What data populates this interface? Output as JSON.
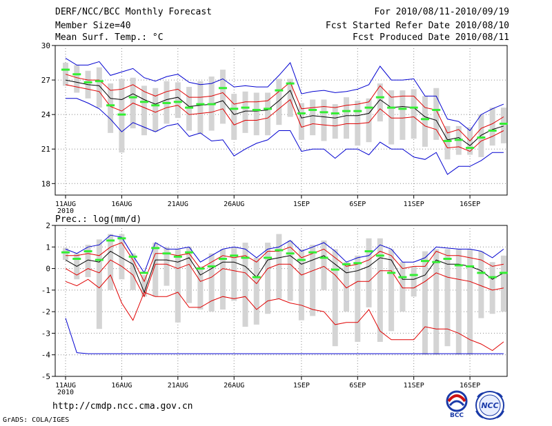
{
  "header": {
    "title": "DERF/NCC/BCC Monthly Forecast",
    "member_size": "Member Size=40",
    "variable": "Mean Surf. Temp.: °C",
    "period": "For 2010/08/11-2010/09/19",
    "fcst_started": "Fcst Started Refer Date 2010/08/10",
    "fcst_produced": "Fcst Produced Date 2010/08/11"
  },
  "footer": {
    "url": "http://cmdp.ncc.cma.gov.cn",
    "grads": "GrADS: COLA/IGES",
    "logo_left": "BCC",
    "logo_right": "NCC"
  },
  "colors": {
    "max": "#0000d0",
    "min": "#0000d0",
    "spread": "#e00000",
    "mean": "#000000",
    "box": "#d4d4d4",
    "obs": "#33ee33"
  },
  "chart_data": [
    {
      "type": "line",
      "title": "Mean Surf. Temp.: °C",
      "x_ticks": [
        "11AUG\n2010",
        "16AUG",
        "21AUG",
        "26AUG",
        "1SEP",
        "6SEP",
        "11SEP",
        "16SEP"
      ],
      "x_tick_days": [
        1,
        6,
        11,
        16,
        22,
        27,
        32,
        37
      ],
      "n_days": 40,
      "ylim": [
        17,
        30
      ],
      "y_ticks": [
        18,
        21,
        24,
        27,
        30
      ],
      "series": {
        "max": [
          28.9,
          28.3,
          28.3,
          28.6,
          27.4,
          27.7,
          28.0,
          27.2,
          26.9,
          27.3,
          27.5,
          26.8,
          26.6,
          26.7,
          27.1,
          26.4,
          26.5,
          26.4,
          26.4,
          27.4,
          28.5,
          25.8,
          26.0,
          26.1,
          25.9,
          26.0,
          26.2,
          26.6,
          28.2,
          27.0,
          27.0,
          27.1,
          25.6,
          25.6,
          23.6,
          23.4,
          22.6,
          24.0,
          24.5,
          24.9
        ],
        "upper": [
          27.5,
          27.2,
          27.0,
          27.0,
          26.1,
          26.2,
          26.6,
          26.0,
          25.6,
          26.0,
          26.2,
          25.5,
          25.5,
          25.6,
          25.9,
          24.9,
          25.1,
          25.1,
          25.2,
          26.0,
          26.8,
          24.5,
          24.6,
          24.7,
          24.6,
          24.8,
          24.9,
          25.1,
          26.5,
          25.5,
          25.6,
          25.6,
          24.6,
          24.4,
          22.4,
          22.7,
          21.7,
          22.8,
          23.2,
          23.8
        ],
        "mean": [
          27.0,
          26.8,
          26.6,
          26.5,
          25.4,
          25.3,
          25.8,
          25.3,
          24.9,
          25.3,
          25.5,
          24.7,
          24.8,
          24.9,
          25.2,
          24.0,
          24.3,
          24.3,
          24.4,
          25.2,
          26.1,
          23.7,
          23.9,
          23.8,
          23.7,
          23.9,
          23.9,
          24.1,
          25.3,
          24.6,
          24.7,
          24.6,
          23.8,
          23.5,
          21.8,
          22.0,
          21.3,
          22.2,
          22.7,
          23.0
        ],
        "lower": [
          26.6,
          26.4,
          26.2,
          26.0,
          24.7,
          24.3,
          25.0,
          24.6,
          24.2,
          24.6,
          24.8,
          24.0,
          24.1,
          24.2,
          24.5,
          23.1,
          23.5,
          23.5,
          23.7,
          24.5,
          25.3,
          22.9,
          23.2,
          23.1,
          23.0,
          23.2,
          23.2,
          23.3,
          24.5,
          23.7,
          23.7,
          23.8,
          23.0,
          22.7,
          21.1,
          21.2,
          20.8,
          21.7,
          22.1,
          22.6
        ],
        "min": [
          25.4,
          25.4,
          25.0,
          24.5,
          23.6,
          22.5,
          23.3,
          22.9,
          22.5,
          23.0,
          23.2,
          22.1,
          22.4,
          21.7,
          21.8,
          20.4,
          21.0,
          21.5,
          21.8,
          22.6,
          22.6,
          20.8,
          21.0,
          21.0,
          20.2,
          21.0,
          21.0,
          20.5,
          21.6,
          21.0,
          21.0,
          20.3,
          20.1,
          20.7,
          18.8,
          19.5,
          19.5,
          20.0,
          20.7,
          20.7
        ],
        "box_low": [
          26.5,
          25.9,
          25.4,
          24.6,
          22.4,
          20.7,
          22.8,
          22.2,
          22.5,
          23.2,
          23.7,
          22.6,
          22.3,
          22.6,
          23.2,
          21.8,
          22.4,
          22.2,
          22.2,
          23.1,
          23.8,
          21.8,
          22.2,
          21.7,
          21.9,
          21.9,
          21.3,
          21.6,
          23.4,
          21.4,
          21.8,
          21.9,
          21.2,
          21.8,
          20.1,
          20.5,
          20.5,
          20.3,
          21.3,
          21.5
        ],
        "box_high": [
          28.5,
          28.3,
          27.8,
          28.1,
          26.7,
          27.1,
          27.2,
          26.5,
          26.3,
          26.9,
          26.8,
          26.4,
          26.9,
          27.3,
          27.9,
          25.8,
          26.0,
          25.9,
          25.9,
          27.1,
          27.1,
          25.0,
          25.3,
          25.3,
          24.9,
          25.5,
          25.2,
          25.4,
          26.7,
          26.1,
          26.1,
          26.2,
          25.6,
          26.3,
          23.0,
          23.0,
          22.9,
          24.0,
          24.6,
          24.6
        ],
        "obs": [
          27.9,
          27.5,
          26.8,
          26.9,
          24.8,
          24.0,
          25.5,
          25.1,
          24.8,
          25.0,
          25.1,
          24.6,
          24.9,
          24.9,
          26.3,
          24.5,
          24.6,
          24.4,
          24.5,
          26.1,
          26.7,
          24.1,
          24.4,
          24.2,
          24.1,
          24.3,
          24.3,
          24.6,
          25.5,
          24.6,
          24.5,
          24.6,
          23.6,
          24.4,
          21.7,
          21.8,
          21.1,
          22.0,
          22.6,
          23.2
        ]
      }
    },
    {
      "type": "line",
      "title": "Prec.: log(mm/d)",
      "x_ticks": [
        "11AUG\n2010",
        "16AUG",
        "21AUG",
        "26AUG",
        "1SEP",
        "6SEP",
        "11SEP",
        "16SEP"
      ],
      "x_tick_days": [
        1,
        6,
        11,
        16,
        22,
        27,
        32,
        37
      ],
      "n_days": 40,
      "ylim": [
        -5,
        2
      ],
      "y_ticks": [
        -5,
        -4,
        -3,
        -2,
        -1,
        0,
        1,
        2
      ],
      "series": {
        "max": [
          0.9,
          0.7,
          1.0,
          1.1,
          1.55,
          1.45,
          0.6,
          -0.2,
          1.2,
          0.9,
          0.9,
          1.0,
          0.3,
          0.6,
          0.9,
          1.0,
          0.9,
          0.5,
          0.9,
          1.0,
          1.3,
          0.8,
          1.0,
          1.2,
          0.8,
          0.3,
          0.5,
          0.6,
          1.1,
          0.9,
          0.3,
          0.3,
          0.5,
          1.0,
          0.95,
          0.9,
          0.9,
          0.8,
          0.5,
          0.9
        ],
        "upper": [
          0.6,
          0.6,
          0.7,
          0.6,
          1.0,
          1.2,
          0.4,
          -0.6,
          0.7,
          0.7,
          0.6,
          0.7,
          0.0,
          0.3,
          0.6,
          0.5,
          0.6,
          0.3,
          0.8,
          0.8,
          1.0,
          0.5,
          0.7,
          0.9,
          0.5,
          0.1,
          0.2,
          0.4,
          0.8,
          0.6,
          0.0,
          0.1,
          0.1,
          0.8,
          0.6,
          0.6,
          0.5,
          0.4,
          0.1,
          0.2
        ],
        "mean": [
          0.4,
          0.1,
          0.4,
          0.3,
          0.8,
          0.5,
          0.2,
          -1.1,
          0.4,
          0.4,
          0.3,
          0.5,
          -0.3,
          0.0,
          0.3,
          0.3,
          0.1,
          -0.4,
          0.4,
          0.5,
          0.6,
          0.2,
          0.4,
          0.6,
          0.2,
          -0.2,
          -0.1,
          0.1,
          0.5,
          0.4,
          -0.5,
          -0.5,
          -0.3,
          0.4,
          0.2,
          0.2,
          0.1,
          -0.1,
          -0.5,
          -0.2
        ],
        "lower": [
          0.0,
          -0.3,
          0.0,
          -0.2,
          0.4,
          0.1,
          -0.3,
          -1.3,
          0.2,
          0.2,
          0.0,
          0.2,
          -0.6,
          -0.4,
          0.0,
          -0.1,
          -0.2,
          -0.7,
          0.0,
          0.2,
          0.2,
          -0.3,
          -0.1,
          0.1,
          -0.3,
          -0.9,
          -0.6,
          -0.6,
          -0.1,
          -0.1,
          -0.9,
          -0.9,
          -0.6,
          -0.2,
          -0.4,
          -0.5,
          -0.6,
          -0.8,
          -1.0,
          -0.9
        ],
        "min": [
          -0.6,
          -0.8,
          -0.5,
          -0.9,
          -0.3,
          -1.6,
          -2.4,
          -1.1,
          -1.3,
          -1.3,
          -1.1,
          -1.8,
          -1.8,
          -1.5,
          -1.3,
          -1.4,
          -1.3,
          -1.9,
          -1.5,
          -1.4,
          -1.6,
          -1.7,
          -1.9,
          -2.0,
          -2.6,
          -2.5,
          -2.5,
          -1.9,
          -2.9,
          -3.3,
          -3.3,
          -3.3,
          -2.7,
          -2.8,
          -2.8,
          -3.0,
          -3.3,
          -3.5,
          -3.8,
          -3.4
        ],
        "extreme_min": [
          -2.3,
          -3.9,
          -3.95,
          -3.95,
          -3.95,
          -3.95,
          -3.95,
          -3.95,
          -3.95,
          -3.95,
          -3.95,
          -3.95,
          -3.95,
          -3.95,
          -3.95,
          -3.95,
          -3.95,
          -3.95,
          -3.95,
          -3.95,
          -3.95,
          -3.95,
          -3.95,
          -3.95,
          -3.95,
          -3.95,
          -3.95,
          -3.95,
          -3.95,
          -3.95,
          -3.95,
          -3.95,
          -3.95,
          -3.95,
          -3.95,
          -3.95,
          -3.95,
          -3.95,
          -3.95,
          -3.95
        ],
        "box_low": [
          0.4,
          -0.5,
          -0.4,
          -2.8,
          -1.0,
          -0.5,
          -1.0,
          -1.3,
          -1.3,
          -0.8,
          -2.5,
          -1.6,
          -1.9,
          -2.0,
          -1.9,
          -1.5,
          -2.7,
          -2.6,
          -2.1,
          -1.4,
          -1.5,
          -2.4,
          -2.2,
          -1.0,
          -3.6,
          -2.0,
          -3.4,
          -1.8,
          -3.4,
          -2.9,
          -2.0,
          -1.3,
          -4.0,
          -4.0,
          -3.6,
          -4.0,
          -4.0,
          -2.3,
          -2.1,
          -2.0
        ],
        "box_high": [
          0.95,
          0.7,
          1.1,
          1.35,
          1.6,
          1.6,
          0.7,
          -0.3,
          1.2,
          1.0,
          0.9,
          1.0,
          0.1,
          0.7,
          0.9,
          1.0,
          1.2,
          0.5,
          1.2,
          1.6,
          1.3,
          0.9,
          1.1,
          1.3,
          0.9,
          0.3,
          0.6,
          1.4,
          1.4,
          0.9,
          0.3,
          0.1,
          0.8,
          0.9,
          0.9,
          0.9,
          0.9,
          0.8,
          0.3,
          0.6
        ],
        "obs": [
          0.75,
          0.45,
          0.8,
          0.4,
          1.3,
          1.4,
          0.55,
          -0.2,
          0.95,
          0.7,
          0.55,
          0.75,
          0.0,
          0.1,
          0.45,
          0.6,
          0.5,
          -0.4,
          0.5,
          0.85,
          0.7,
          0.4,
          0.75,
          0.5,
          -0.05,
          0.2,
          0.25,
          0.8,
          0.6,
          -0.2,
          -0.4,
          -0.3,
          0.35,
          0.3,
          0.45,
          0.15,
          0.1,
          -0.2,
          -0.4,
          -0.2
        ]
      }
    }
  ]
}
